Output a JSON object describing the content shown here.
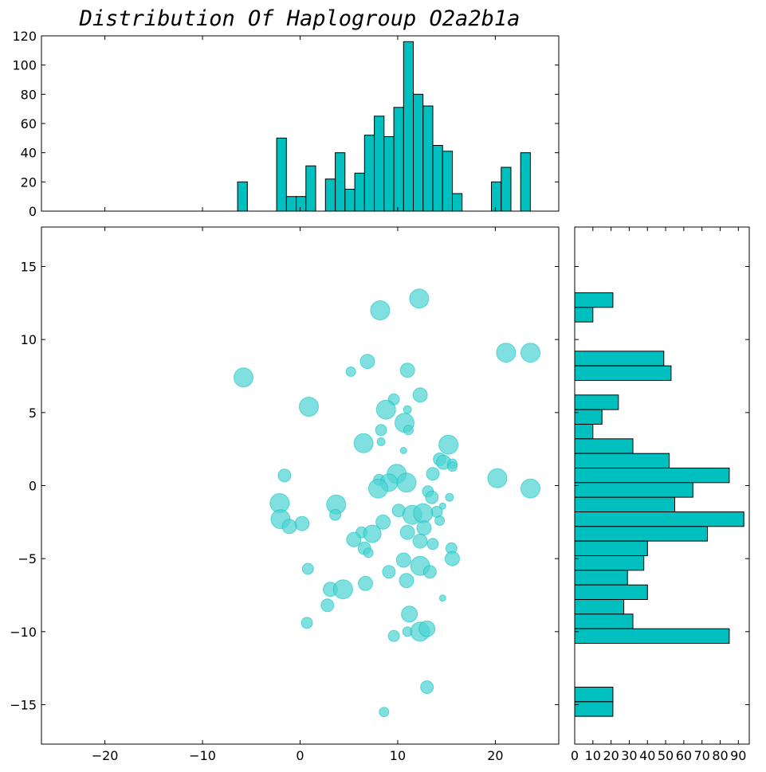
{
  "chart_data": {
    "title": "Distribution Of Haplogroup O2a2b1a",
    "colors": {
      "fill": "#00BFBF",
      "bubble": "#4FD3D3",
      "axis": "#000000"
    },
    "scatter": {
      "type": "scatter",
      "xlim": [
        -26.5,
        26.5
      ],
      "ylim": [
        -17.7,
        17.7
      ],
      "xticks": [
        -20,
        -10,
        0,
        10,
        20
      ],
      "xtick_labels": [
        "−20",
        "−10",
        "0",
        "10",
        "20"
      ],
      "yticks": [
        -15,
        -10,
        -5,
        0,
        5,
        10,
        15
      ],
      "ytick_labels": [
        "−15",
        "−10",
        "−5",
        "0",
        "5",
        "10",
        "15"
      ],
      "points": [
        {
          "x": 12.2,
          "y": 12.8,
          "s": 12
        },
        {
          "x": 8.2,
          "y": 12.0,
          "s": 12
        },
        {
          "x": -5.8,
          "y": 7.4,
          "s": 12
        },
        {
          "x": 6.9,
          "y": 8.5,
          "s": 9
        },
        {
          "x": 5.2,
          "y": 7.8,
          "s": 6
        },
        {
          "x": 11.0,
          "y": 7.9,
          "s": 9
        },
        {
          "x": 21.1,
          "y": 9.1,
          "s": 12
        },
        {
          "x": 23.6,
          "y": 9.1,
          "s": 12
        },
        {
          "x": 12.3,
          "y": 6.2,
          "s": 9
        },
        {
          "x": 9.6,
          "y": 5.9,
          "s": 7
        },
        {
          "x": 0.9,
          "y": 5.4,
          "s": 12
        },
        {
          "x": 8.8,
          "y": 5.2,
          "s": 12
        },
        {
          "x": 11.0,
          "y": 5.2,
          "s": 5
        },
        {
          "x": 10.7,
          "y": 4.3,
          "s": 12
        },
        {
          "x": 8.3,
          "y": 3.8,
          "s": 7
        },
        {
          "x": 11.1,
          "y": 3.8,
          "s": 6
        },
        {
          "x": 6.5,
          "y": 2.9,
          "s": 12
        },
        {
          "x": 8.3,
          "y": 3.0,
          "s": 5
        },
        {
          "x": 15.2,
          "y": 2.8,
          "s": 12
        },
        {
          "x": 10.6,
          "y": 2.4,
          "s": 4
        },
        {
          "x": 14.3,
          "y": 1.8,
          "s": 8
        },
        {
          "x": 14.7,
          "y": 1.6,
          "s": 9
        },
        {
          "x": 15.6,
          "y": 1.5,
          "s": 6
        },
        {
          "x": 15.6,
          "y": 1.3,
          "s": 6
        },
        {
          "x": 13.6,
          "y": 0.8,
          "s": 8
        },
        {
          "x": -1.6,
          "y": 0.7,
          "s": 8
        },
        {
          "x": 9.9,
          "y": 0.8,
          "s": 12
        },
        {
          "x": 8.1,
          "y": 0.4,
          "s": 7
        },
        {
          "x": 9.1,
          "y": 0.2,
          "s": 11
        },
        {
          "x": 10.9,
          "y": 0.2,
          "s": 12
        },
        {
          "x": 8.0,
          "y": -0.2,
          "s": 12
        },
        {
          "x": 20.2,
          "y": 0.5,
          "s": 12
        },
        {
          "x": 23.6,
          "y": -0.2,
          "s": 12
        },
        {
          "x": 13.1,
          "y": -0.4,
          "s": 7
        },
        {
          "x": 13.5,
          "y": -0.8,
          "s": 8
        },
        {
          "x": 15.3,
          "y": -0.8,
          "s": 5
        },
        {
          "x": -2.1,
          "y": -1.2,
          "s": 12
        },
        {
          "x": 3.7,
          "y": -1.3,
          "s": 12
        },
        {
          "x": 14.6,
          "y": -1.4,
          "s": 4
        },
        {
          "x": 10.1,
          "y": -1.7,
          "s": 8
        },
        {
          "x": 14.0,
          "y": -1.8,
          "s": 7
        },
        {
          "x": 3.6,
          "y": -2.0,
          "s": 7
        },
        {
          "x": 11.5,
          "y": -2.0,
          "s": 12
        },
        {
          "x": 12.6,
          "y": -1.9,
          "s": 12
        },
        {
          "x": -2.0,
          "y": -2.3,
          "s": 12
        },
        {
          "x": 0.2,
          "y": -2.6,
          "s": 9
        },
        {
          "x": 8.5,
          "y": -2.5,
          "s": 9
        },
        {
          "x": 14.3,
          "y": -2.4,
          "s": 6
        },
        {
          "x": -1.1,
          "y": -2.8,
          "s": 9
        },
        {
          "x": 12.7,
          "y": -2.9,
          "s": 9
        },
        {
          "x": 6.3,
          "y": -3.2,
          "s": 7
        },
        {
          "x": 7.4,
          "y": -3.3,
          "s": 11
        },
        {
          "x": 11.0,
          "y": -3.2,
          "s": 9
        },
        {
          "x": 5.5,
          "y": -3.7,
          "s": 9
        },
        {
          "x": 12.3,
          "y": -3.8,
          "s": 9
        },
        {
          "x": 13.6,
          "y": -4.0,
          "s": 7
        },
        {
          "x": 6.6,
          "y": -4.3,
          "s": 8
        },
        {
          "x": 7.0,
          "y": -4.6,
          "s": 6
        },
        {
          "x": 15.5,
          "y": -4.3,
          "s": 7
        },
        {
          "x": 15.6,
          "y": -5.0,
          "s": 9
        },
        {
          "x": 10.6,
          "y": -5.1,
          "s": 9
        },
        {
          "x": 12.3,
          "y": -5.5,
          "s": 12
        },
        {
          "x": 0.8,
          "y": -5.7,
          "s": 7
        },
        {
          "x": 9.1,
          "y": -5.9,
          "s": 8
        },
        {
          "x": 13.3,
          "y": -5.9,
          "s": 8
        },
        {
          "x": 10.9,
          "y": -6.5,
          "s": 9
        },
        {
          "x": 6.7,
          "y": -6.7,
          "s": 9
        },
        {
          "x": 3.1,
          "y": -7.1,
          "s": 9
        },
        {
          "x": 4.4,
          "y": -7.1,
          "s": 12
        },
        {
          "x": 14.6,
          "y": -7.7,
          "s": 4
        },
        {
          "x": 2.8,
          "y": -8.2,
          "s": 8
        },
        {
          "x": 11.2,
          "y": -8.8,
          "s": 10
        },
        {
          "x": 0.7,
          "y": -9.4,
          "s": 7
        },
        {
          "x": 11.0,
          "y": -10.0,
          "s": 6
        },
        {
          "x": 12.3,
          "y": -10.0,
          "s": 12
        },
        {
          "x": 13.0,
          "y": -9.8,
          "s": 10
        },
        {
          "x": 9.6,
          "y": -10.3,
          "s": 7
        },
        {
          "x": 13.0,
          "y": -13.8,
          "s": 8
        },
        {
          "x": 8.6,
          "y": -15.5,
          "s": 6
        }
      ]
    },
    "hist_x": {
      "type": "bar",
      "ylim": [
        0,
        120
      ],
      "yticks": [
        0,
        20,
        40,
        60,
        80,
        100,
        120
      ],
      "bin_width": 1.0,
      "bins": [
        {
          "x0": -6.4,
          "value": 20
        },
        {
          "x0": -2.4,
          "value": 50
        },
        {
          "x0": -1.4,
          "value": 10
        },
        {
          "x0": -0.4,
          "value": 10
        },
        {
          "x0": 0.6,
          "value": 31
        },
        {
          "x0": 2.6,
          "value": 22
        },
        {
          "x0": 3.6,
          "value": 40
        },
        {
          "x0": 4.6,
          "value": 15
        },
        {
          "x0": 5.6,
          "value": 26
        },
        {
          "x0": 6.6,
          "value": 52
        },
        {
          "x0": 7.6,
          "value": 65
        },
        {
          "x0": 8.6,
          "value": 51
        },
        {
          "x0": 9.6,
          "value": 71
        },
        {
          "x0": 10.6,
          "value": 116
        },
        {
          "x0": 11.6,
          "value": 80
        },
        {
          "x0": 12.6,
          "value": 72
        },
        {
          "x0": 13.6,
          "value": 45
        },
        {
          "x0": 14.6,
          "value": 41
        },
        {
          "x0": 15.6,
          "value": 12
        },
        {
          "x0": 19.6,
          "value": 20
        },
        {
          "x0": 20.6,
          "value": 30
        },
        {
          "x0": 22.6,
          "value": 40
        }
      ]
    },
    "hist_y": {
      "type": "bar",
      "orientation": "horizontal",
      "xlim": [
        0,
        96
      ],
      "xticks": [
        0,
        10,
        20,
        30,
        40,
        50,
        60,
        70,
        80,
        90
      ],
      "bin_height": 1.0,
      "bins": [
        {
          "y0": 12.2,
          "value": 21
        },
        {
          "y0": 11.2,
          "value": 10
        },
        {
          "y0": 8.2,
          "value": 49
        },
        {
          "y0": 7.2,
          "value": 53
        },
        {
          "y0": 5.2,
          "value": 24
        },
        {
          "y0": 4.2,
          "value": 15
        },
        {
          "y0": 3.2,
          "value": 10
        },
        {
          "y0": 2.2,
          "value": 32
        },
        {
          "y0": 1.2,
          "value": 52
        },
        {
          "y0": 0.2,
          "value": 85
        },
        {
          "y0": -0.8,
          "value": 65
        },
        {
          "y0": -1.8,
          "value": 55
        },
        {
          "y0": -2.8,
          "value": 93
        },
        {
          "y0": -3.8,
          "value": 73
        },
        {
          "y0": -4.8,
          "value": 40
        },
        {
          "y0": -5.8,
          "value": 38
        },
        {
          "y0": -6.8,
          "value": 29
        },
        {
          "y0": -7.8,
          "value": 40
        },
        {
          "y0": -8.8,
          "value": 27
        },
        {
          "y0": -9.8,
          "value": 32
        },
        {
          "y0": -10.8,
          "value": 85
        },
        {
          "y0": -14.8,
          "value": 21
        },
        {
          "y0": -15.8,
          "value": 21
        }
      ]
    }
  }
}
